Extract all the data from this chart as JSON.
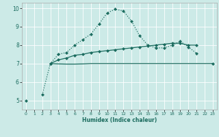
{
  "xlabel": "Humidex (Indice chaleur)",
  "x": [
    0,
    1,
    2,
    3,
    4,
    5,
    6,
    7,
    8,
    9,
    10,
    11,
    12,
    13,
    14,
    15,
    16,
    17,
    18,
    19,
    20,
    21,
    22,
    23
  ],
  "line1_y": [
    5.0,
    null,
    5.3,
    7.0,
    7.5,
    7.6,
    8.0,
    8.3,
    8.6,
    9.15,
    9.75,
    9.95,
    9.85,
    9.3,
    8.5,
    8.0,
    7.85,
    7.85,
    8.0,
    8.2,
    7.9,
    7.55,
    null,
    7.0
  ],
  "line2_y": [
    null,
    null,
    null,
    7.0,
    7.2,
    7.3,
    7.45,
    7.5,
    7.6,
    7.65,
    7.7,
    7.75,
    7.8,
    7.85,
    7.9,
    7.95,
    8.0,
    8.05,
    8.1,
    8.1,
    8.0,
    8.0,
    null,
    null
  ],
  "line3_y": [
    null,
    null,
    null,
    7.0,
    6.98,
    6.97,
    6.97,
    6.98,
    7.0,
    7.0,
    7.0,
    7.0,
    7.0,
    7.0,
    7.0,
    7.0,
    7.0,
    7.0,
    7.0,
    7.0,
    7.0,
    7.0,
    7.0,
    7.0
  ],
  "ylim": [
    4.5,
    10.3
  ],
  "xlim": [
    -0.5,
    23.5
  ],
  "yticks": [
    5,
    6,
    7,
    8,
    9,
    10
  ],
  "xticks": [
    0,
    1,
    2,
    3,
    4,
    5,
    6,
    7,
    8,
    9,
    10,
    11,
    12,
    13,
    14,
    15,
    16,
    17,
    18,
    19,
    20,
    21,
    22,
    23
  ],
  "line_color": "#1a6b5e",
  "bg_color": "#cceae7",
  "grid_color": "#ffffff",
  "marker": "D",
  "marker_size": 2.2,
  "lw": 0.9
}
